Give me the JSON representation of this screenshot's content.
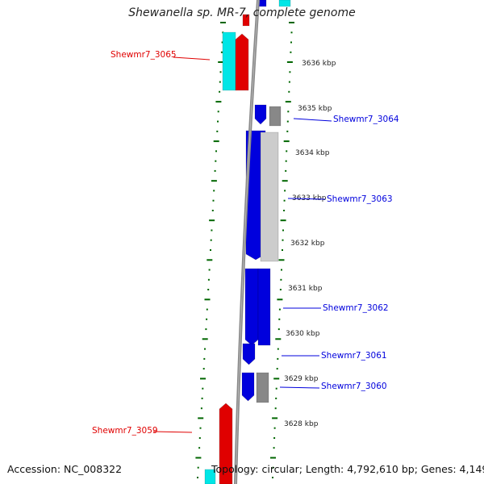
{
  "title": "Shewanella sp. MR-7, complete genome",
  "footer": {
    "accession": "Accession: NC_008322",
    "topology": "Topology: circular; Length: 4,792,610 bp; Genes: 4,149"
  },
  "colors": {
    "forward_gene": "#e00000",
    "reverse_gene": "#0000dd",
    "forward_gray": "#f0f0f0",
    "reverse_gray": "#888888",
    "light_gray": "#cccccc",
    "cyan": "#00e6e6",
    "tick_green": "#006600",
    "backbone": "#888888"
  },
  "ticks": [
    {
      "label": "3636 kbp"
    },
    {
      "label": "3635 kbp"
    },
    {
      "label": "3634 kbp"
    },
    {
      "label": "3633 kbp"
    },
    {
      "label": "3632 kbp"
    },
    {
      "label": "3631 kbp"
    },
    {
      "label": "3630 kbp"
    },
    {
      "label": "3629 kbp"
    },
    {
      "label": "3628 kbp"
    }
  ],
  "gene_labels": [
    {
      "name": "Shewmr7_3065",
      "strand": "forward"
    },
    {
      "name": "Shewmr7_3064",
      "strand": "reverse"
    },
    {
      "name": "Shewmr7_3063",
      "strand": "reverse"
    },
    {
      "name": "Shewmr7_3062",
      "strand": "reverse"
    },
    {
      "name": "Shewmr7_3061",
      "strand": "reverse"
    },
    {
      "name": "Shewmr7_3060",
      "strand": "reverse"
    },
    {
      "name": "Shewmr7_3059",
      "strand": "forward"
    }
  ]
}
